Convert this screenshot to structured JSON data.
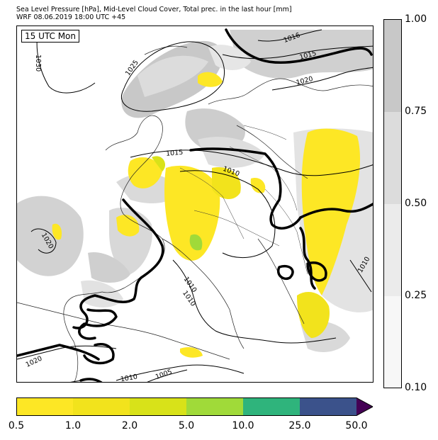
{
  "title": {
    "line1": "Sea Level Pressure [hPa], Mid-Level Cloud Cover, Total prec. in the last hour [mm]",
    "line2": "WRF 08.06.2019 18:00 UTC +45"
  },
  "time_label": "15 UTC Mon",
  "isobar_labels": [
    "1030",
    "1025",
    "1016",
    "1015",
    "1020",
    "1015",
    "1010",
    "1020",
    "1010",
    "1010",
    "1020",
    "1010",
    "1005",
    "1010"
  ],
  "cloud_colorbar": {
    "ticks": [
      "1.00",
      "0.75",
      "0.50",
      "0.25",
      "0.10"
    ],
    "colors": [
      "#c8c8c8",
      "#dcdcdc",
      "#ebebeb",
      "#f7f7f7"
    ]
  },
  "precip_colorbar": {
    "ticks": [
      "0.5",
      "1.0",
      "2.0",
      "5.0",
      "10.0",
      "25.0",
      "50.0"
    ],
    "colors": [
      "#fde725",
      "#f2e31c",
      "#d8e219",
      "#a0da39",
      "#2fb47c",
      "#3b528b",
      "#440154"
    ]
  },
  "colors": {
    "precip_light": "#fde725",
    "precip_medium": "#a0da39",
    "cloud_dark": "#c8c8c8",
    "cloud_light": "#dedede",
    "front_line": "#000000"
  }
}
